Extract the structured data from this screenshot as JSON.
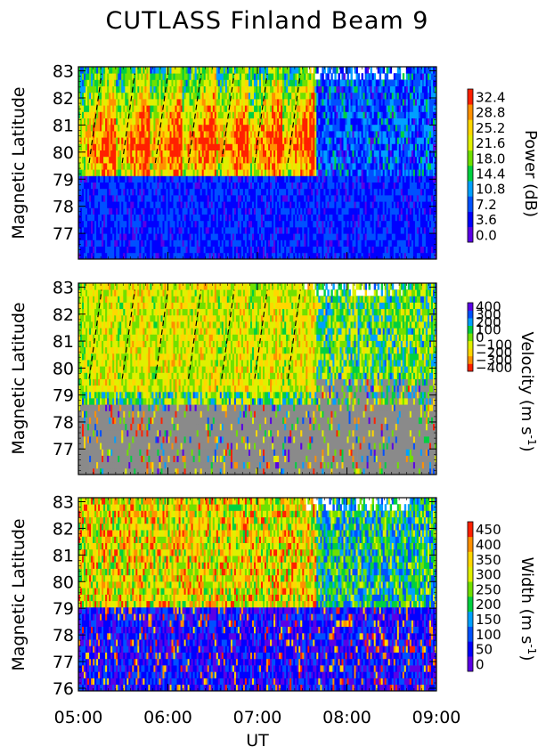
{
  "title": "CUTLASS Finland Beam 9",
  "xlabel": "UT",
  "x_ticks": [
    "05:00",
    "06:00",
    "07:00",
    "08:00",
    "09:00"
  ],
  "chart_data": [
    {
      "type": "heatmap",
      "panel": "power",
      "title": "CUTLASS Finland Beam 9",
      "xlabel": "UT",
      "ylabel": "Magnetic Latitude",
      "xlim": [
        "05:00",
        "09:00"
      ],
      "ylim": [
        76,
        83
      ],
      "y_ticks": [
        "77",
        "78",
        "79",
        "80",
        "81",
        "82",
        "83"
      ],
      "colorbar_label": "Power (dB)",
      "colorbar_ticks": [
        "32.4",
        "28.8",
        "25.2",
        "21.6",
        "18.0",
        "14.4",
        "10.8",
        "7.2",
        "3.6",
        "0.0"
      ],
      "colorscale": [
        "#5a00e6",
        "#0000ff",
        "#0050ff",
        "#00a0ff",
        "#00d040",
        "#70e000",
        "#e0f000",
        "#ffd700",
        "#ff9000",
        "#ff2000"
      ],
      "features": "Bright sawtooth structures (~20-30 dB) poleward of 79 deg MLAT between 05:00 and 07:40 UT, bounded by dashed slanted lines; weak scatter (<7 dB) equatorward of 78.5 deg."
    },
    {
      "type": "heatmap",
      "panel": "velocity",
      "xlabel": "UT",
      "ylabel": "Magnetic Latitude",
      "xlim": [
        "05:00",
        "09:00"
      ],
      "ylim": [
        76,
        83
      ],
      "y_ticks": [
        "77",
        "78",
        "79",
        "80",
        "81",
        "82",
        "83"
      ],
      "colorbar_label": "Velocity (m s",
      "colorbar_label_sup": "-1",
      "colorbar_ticks": [
        "400",
        "300",
        "200",
        "100",
        "0",
        "−100",
        "−200",
        "−300",
        "−400"
      ],
      "colorscale": [
        "#ff2000",
        "#ff9000",
        "#ffd700",
        "#e0f000",
        "#70e000",
        "#00d040",
        "#00a0ff",
        "#0050ff",
        "#5a00e6"
      ],
      "ground_scatter_color": "#8a8a8a",
      "features": "Predominantly negative (away) velocities (-200 to -400 m/s) in bursty sawtooth structures from 05:00 to 07:40 UT above 79 deg; grey ground scatter below 78.5 deg."
    },
    {
      "type": "heatmap",
      "panel": "width",
      "xlabel": "UT",
      "ylabel": "Magnetic Latitude",
      "xlim": [
        "05:00",
        "09:00"
      ],
      "ylim": [
        76,
        83
      ],
      "y_ticks": [
        "76",
        "77",
        "78",
        "79",
        "80",
        "81",
        "82",
        "83"
      ],
      "colorbar_label": "Width (m s",
      "colorbar_label_sup": "-1",
      "colorbar_ticks": [
        "450",
        "400",
        "350",
        "300",
        "250",
        "200",
        "150",
        "100",
        "50",
        "0"
      ],
      "colorscale": [
        "#5a00e6",
        "#0000ff",
        "#0050ff",
        "#00a0ff",
        "#00d040",
        "#70e000",
        "#e0f000",
        "#ffd700",
        "#ff9000",
        "#ff2000"
      ],
      "features": "High spectral widths (250-450 m/s) poleward of 79 deg before 07:40 UT; low widths (<100 m/s) equatorward of 78 deg."
    }
  ]
}
